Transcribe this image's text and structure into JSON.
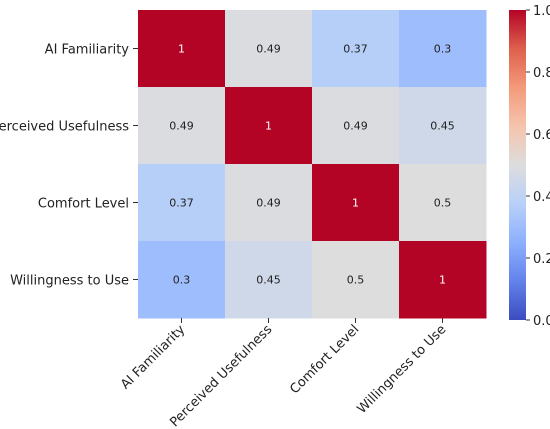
{
  "chart_data": {
    "type": "heatmap",
    "rows": [
      "AI Familiarity",
      "Perceived Usefulness",
      "Comfort Level",
      "Willingness to Use"
    ],
    "columns": [
      "AI Familiarity",
      "Perceived Usefulness",
      "Comfort Level",
      "Willingness to Use"
    ],
    "values": [
      [
        1,
        0.49,
        0.37,
        0.3
      ],
      [
        0.49,
        1,
        0.49,
        0.45
      ],
      [
        0.37,
        0.49,
        1,
        0.5
      ],
      [
        0.3,
        0.45,
        0.5,
        1
      ]
    ],
    "value_labels": [
      [
        "1",
        "0.49",
        "0.37",
        "0.3"
      ],
      [
        "0.49",
        "1",
        "0.49",
        "0.45"
      ],
      [
        "0.37",
        "0.49",
        "1",
        "0.5"
      ],
      [
        "0.3",
        "0.45",
        "0.5",
        "1"
      ]
    ],
    "colormap": "coolwarm",
    "colorbar": {
      "range": [
        0.0,
        1.0
      ],
      "ticks": [
        0.0,
        0.2,
        0.4,
        0.6,
        0.8,
        1.0
      ],
      "tick_labels": [
        "0.0",
        "0.2",
        "0.4",
        "0.6",
        "0.8",
        "1.0"
      ],
      "position": "right"
    },
    "title": "",
    "xlabel": "",
    "ylabel": ""
  }
}
